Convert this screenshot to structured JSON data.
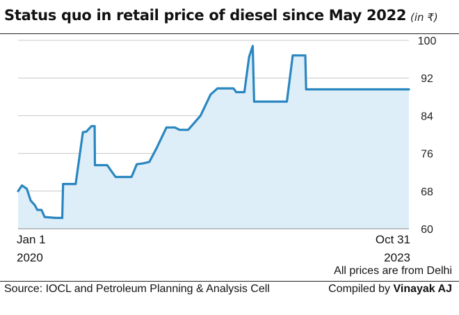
{
  "header": {
    "title": "Status quo in retail price of diesel since May 2022",
    "unit": "(in ₹)"
  },
  "footer": {
    "note": "All prices are from Delhi",
    "source": "Source: IOCL and Petroleum Planning & Analysis Cell",
    "credit_prefix": "Compiled by ",
    "credit_name": "Vinayak AJ"
  },
  "chart_data": {
    "type": "area",
    "title": "Status quo in retail price of diesel since May 2022",
    "ylabel": "(in ₹)",
    "xlabel": "",
    "ylim": [
      60,
      100
    ],
    "yticks": [
      60,
      68,
      76,
      84,
      92,
      100
    ],
    "xlim": [
      "2020-01-01",
      "2023-10-31"
    ],
    "x_tick_labels": [
      {
        "date": "2020-01-01",
        "line1": "Jan 1",
        "line2": "2020"
      },
      {
        "date": "2023-10-31",
        "line1": "Oct 31",
        "line2": "2023"
      }
    ],
    "grid": true,
    "colors": {
      "line": "#2a86c0",
      "fill": "#ddeef9",
      "grid": "#c8c8c8",
      "axis": "#888888"
    },
    "series": [
      {
        "points": [
          [
            "2020-01-01",
            68.0
          ],
          [
            "2020-01-15",
            69.2
          ],
          [
            "2020-02-01",
            68.5
          ],
          [
            "2020-02-15",
            66.0
          ],
          [
            "2020-03-01",
            65.0
          ],
          [
            "2020-03-10",
            64.0
          ],
          [
            "2020-03-25",
            64.0
          ],
          [
            "2020-04-05",
            62.5
          ],
          [
            "2020-05-15",
            62.3
          ],
          [
            "2020-06-07",
            62.3
          ],
          [
            "2020-06-10",
            69.5
          ],
          [
            "2020-07-10",
            69.5
          ],
          [
            "2020-07-25",
            69.5
          ],
          [
            "2020-08-20",
            80.5
          ],
          [
            "2020-09-01",
            80.6
          ],
          [
            "2020-09-20",
            81.8
          ],
          [
            "2020-10-01",
            81.8
          ],
          [
            "2020-10-02",
            73.5
          ],
          [
            "2020-11-15",
            73.5
          ],
          [
            "2020-12-15",
            71.0
          ],
          [
            "2021-02-10",
            71.0
          ],
          [
            "2021-03-01",
            73.7
          ],
          [
            "2021-03-25",
            73.9
          ],
          [
            "2021-04-15",
            74.2
          ],
          [
            "2021-05-10",
            77.0
          ],
          [
            "2021-06-15",
            81.5
          ],
          [
            "2021-07-15",
            81.5
          ],
          [
            "2021-08-01",
            81.0
          ],
          [
            "2021-09-01",
            81.0
          ],
          [
            "2021-10-15",
            84.0
          ],
          [
            "2021-11-20",
            88.5
          ],
          [
            "2021-12-15",
            89.8
          ],
          [
            "2022-01-15",
            89.8
          ],
          [
            "2022-02-10",
            89.8
          ],
          [
            "2022-02-20",
            89.0
          ],
          [
            "2022-03-21",
            89.0
          ],
          [
            "2022-04-07",
            96.5
          ],
          [
            "2022-04-20",
            98.8
          ],
          [
            "2022-04-25",
            87.0
          ],
          [
            "2022-08-20",
            87.0
          ],
          [
            "2022-09-10",
            96.8
          ],
          [
            "2022-10-25",
            96.8
          ],
          [
            "2022-10-28",
            89.6
          ],
          [
            "2023-10-31",
            89.6
          ]
        ]
      }
    ]
  }
}
